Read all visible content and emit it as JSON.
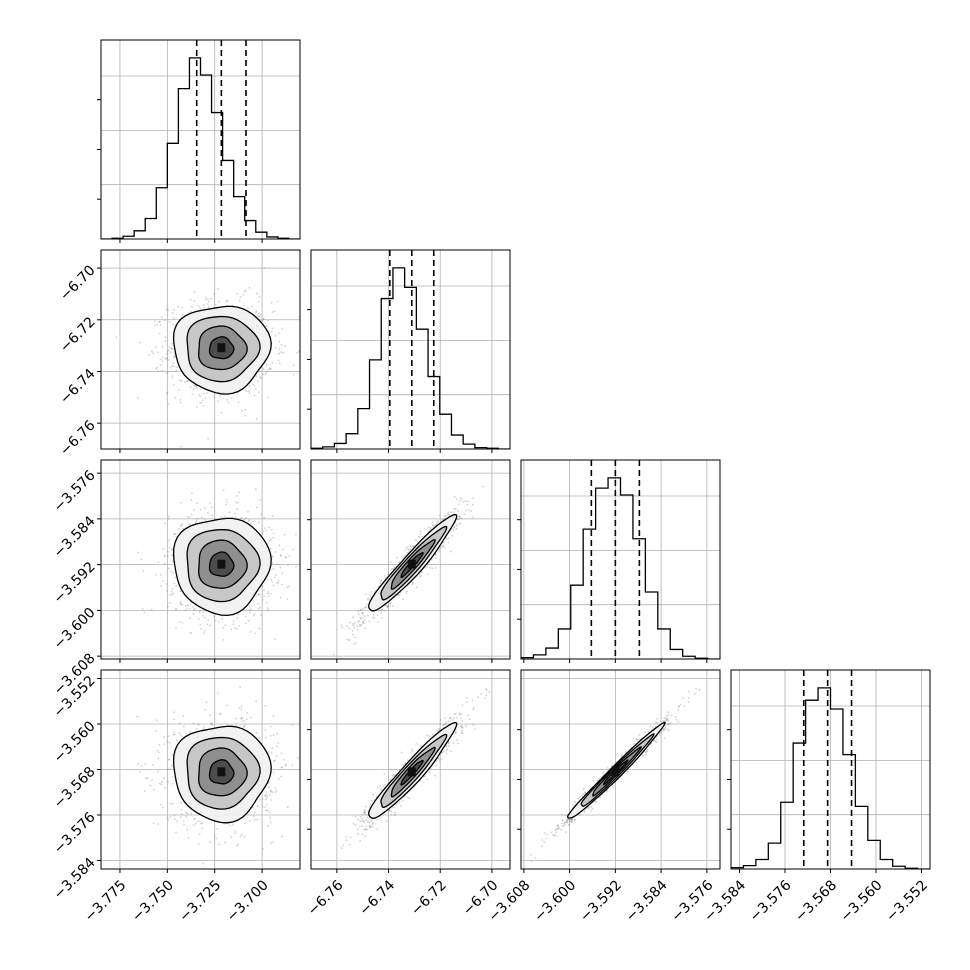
{
  "chart_data": {
    "type": "corner",
    "variables": [
      {
        "id": "p0",
        "range": [
          -3.785,
          -3.68
        ],
        "ticks": [
          -3.775,
          -3.75,
          -3.725,
          -3.7
        ],
        "tick_labels": [
          "−3.775",
          "−3.750",
          "−3.725",
          "−3.700"
        ],
        "mean": -3.7215,
        "sd": 0.0127,
        "quantiles": [
          -3.7345,
          -3.7215,
          -3.7085
        ],
        "hist_counts": [
          0,
          1,
          4,
          12,
          30,
          75,
          140,
          220,
          265,
          240,
          185,
          115,
          62,
          27,
          10,
          3,
          1,
          0
        ]
      },
      {
        "id": "p1",
        "range": [
          -6.77,
          -6.693
        ],
        "ticks": [
          -6.76,
          -6.74,
          -6.72,
          -6.7
        ],
        "tick_labels": [
          "−6.76",
          "−6.74",
          "−6.72",
          "−6.70"
        ],
        "mean": -6.731,
        "sd": 0.0084,
        "quantiles": [
          -6.7395,
          -6.731,
          -6.7225
        ],
        "hist_counts": [
          1,
          3,
          8,
          22,
          58,
          128,
          216,
          260,
          232,
          172,
          104,
          50,
          20,
          7,
          2,
          1,
          0
        ]
      },
      {
        "id": "p2",
        "range": [
          -3.6085,
          -3.5737
        ],
        "ticks": [
          -3.608,
          -3.6,
          -3.592,
          -3.584,
          -3.576
        ],
        "tick_labels": [
          "−3.608",
          "−3.600",
          "−3.592",
          "−3.584",
          "−3.576"
        ],
        "mean": -3.592,
        "sd": 0.0042,
        "quantiles": [
          -3.5962,
          -3.592,
          -3.5878
        ],
        "hist_counts": [
          2,
          6,
          16,
          44,
          108,
          190,
          250,
          265,
          240,
          176,
          98,
          44,
          14,
          4,
          1,
          0
        ]
      },
      {
        "id": "p3",
        "range": [
          -3.5855,
          -3.5505
        ],
        "ticks": [
          -3.584,
          -3.576,
          -3.568,
          -3.56,
          -3.552
        ],
        "tick_labels": [
          "−3.584",
          "−3.576",
          "−3.568",
          "−3.560",
          "−3.552"
        ],
        "mean": -3.5685,
        "sd": 0.0042,
        "quantiles": [
          -3.5727,
          -3.5685,
          -3.5643
        ],
        "hist_counts": [
          2,
          5,
          14,
          38,
          98,
          185,
          248,
          266,
          235,
          168,
          92,
          42,
          14,
          4,
          1,
          0
        ]
      }
    ],
    "correlations": [
      [
        1,
        0,
        0,
        0
      ],
      [
        0,
        1,
        0.95,
        0.95
      ],
      [
        0,
        0.95,
        1,
        0.985
      ],
      [
        0,
        0.95,
        0.985,
        1
      ]
    ],
    "contour_levels": [
      0.5,
      1.0,
      1.5,
      2.0
    ],
    "grid": true,
    "colors": {
      "line": "#000000",
      "dashed": "#000000",
      "points": "#7f7f7f",
      "fill": "#555555",
      "grid": "#b0b0b0"
    }
  }
}
